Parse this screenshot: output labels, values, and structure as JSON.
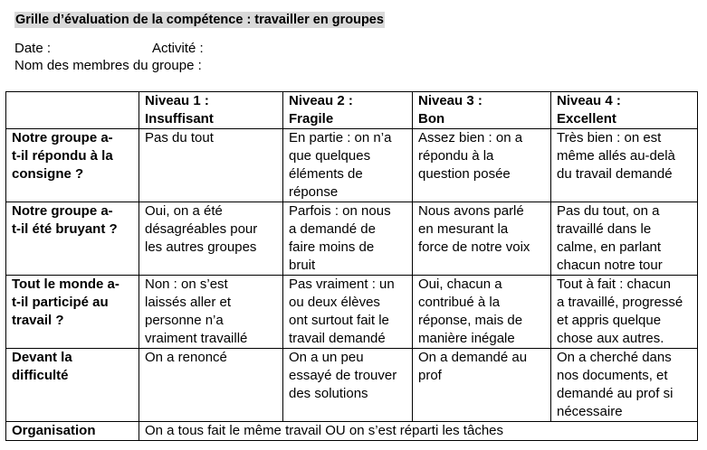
{
  "title": "Grille d’évaluation de la compétence : travailler en groupes",
  "date_label": "Date :",
  "activity_label": "Activité :",
  "members_label": "Nom des membres du groupe :",
  "header": [
    "",
    "Niveau 1 :\nInsuffisant",
    "Niveau 2 :\nFragile",
    "Niveau 3 :\nBon",
    "Niveau 4 :\nExcellent"
  ],
  "rows": [
    [
      "Notre groupe a-\nt-il répondu à la\nconsigne ?",
      "Pas du tout",
      "En partie : on n’a\nque quelques\néléments de\nréponse",
      "Assez bien : on a\nrépondu à la\nquestion posée",
      "Très bien : on est\nmême allés au-delà\ndu travail demandé"
    ],
    [
      "Notre groupe a-\nt-il été bruyant ?",
      "Oui, on a été\ndésagréables pour\nles autres groupes",
      "Parfois : on nous\na demandé de\nfaire moins de\nbruit",
      "Nous avons parlé\nen mesurant la\nforce de notre voix",
      "Pas du tout, on a\ntravaillé dans le\ncalme, en parlant\nchacun notre tour"
    ],
    [
      "Tout le monde a-\nt-il participé au\ntravail ?",
      "Non : on s’est\nlaissés aller et\npersonne n’a\nvraiment travaillé",
      "Pas vraiment : un\nou deux élèves\nont surtout fait le\ntravail demandé",
      "Oui, chacun a\ncontribué à la\nréponse, mais de\nmanière inégale",
      "Tout à fait : chacun\na travaillé, progressé\net appris quelque\nchose aux autres."
    ],
    [
      "Devant la\ndifficulté",
      "On a renoncé",
      "On a un peu\nessayé de trouver\ndes solutions",
      "On a demandé au\nprof",
      "On a cherché dans\nnos documents, et\ndemandé au prof si\nnécessaire"
    ]
  ],
  "last_row": {
    "label": "Organisation",
    "text": "On a tous fait le même travail OU on s’est réparti les tâches"
  }
}
